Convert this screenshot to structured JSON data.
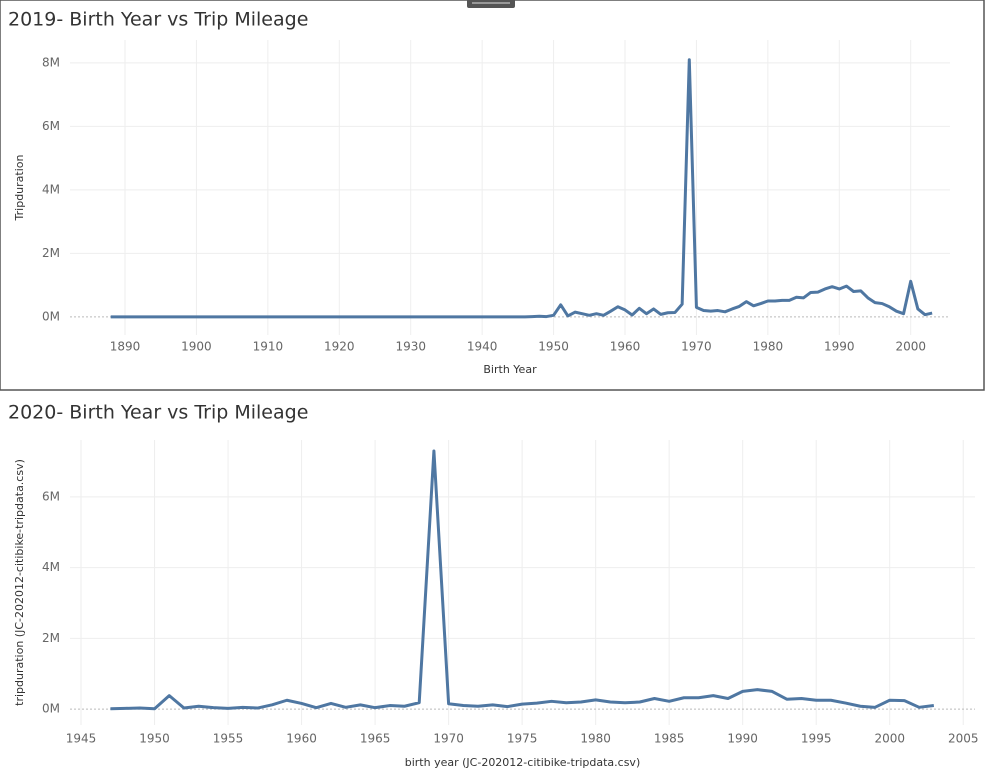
{
  "chart_data": [
    {
      "type": "line",
      "title": "2019- Birth Year vs Trip Mileage",
      "x_label": "Birth Year",
      "y_label": "Tripduration",
      "color": "#4f77a2",
      "grid": true,
      "x": [
        1888,
        1900,
        1910,
        1920,
        1930,
        1940,
        1945,
        1946,
        1947,
        1948,
        1949,
        1950,
        1951,
        1952,
        1953,
        1954,
        1955,
        1956,
        1957,
        1958,
        1959,
        1960,
        1961,
        1962,
        1963,
        1964,
        1965,
        1966,
        1967,
        1968,
        1969,
        1970,
        1971,
        1972,
        1973,
        1974,
        1975,
        1976,
        1977,
        1978,
        1979,
        1980,
        1981,
        1982,
        1983,
        1984,
        1985,
        1986,
        1987,
        1988,
        1989,
        1990,
        1991,
        1992,
        1993,
        1994,
        1995,
        1996,
        1997,
        1998,
        1999,
        2000,
        2001,
        2002,
        2003
      ],
      "values": [
        0,
        0,
        0,
        0,
        0,
        0,
        0,
        0,
        10000,
        20000,
        10000,
        50000,
        380000,
        30000,
        150000,
        100000,
        50000,
        100000,
        50000,
        180000,
        320000,
        220000,
        60000,
        270000,
        100000,
        250000,
        80000,
        130000,
        140000,
        400000,
        8100000,
        300000,
        200000,
        180000,
        200000,
        160000,
        250000,
        330000,
        480000,
        350000,
        420000,
        500000,
        500000,
        520000,
        520000,
        620000,
        600000,
        770000,
        780000,
        880000,
        950000,
        880000,
        970000,
        800000,
        820000,
        600000,
        450000,
        420000,
        320000,
        180000,
        100000,
        1120000,
        250000,
        70000,
        120000
      ],
      "xlim": [
        1882.3,
        2005.5
      ],
      "xticks": [
        1890,
        1900,
        1910,
        1920,
        1930,
        1940,
        1950,
        1960,
        1970,
        1980,
        1990,
        2000
      ],
      "ylim": [
        -570000,
        8720000
      ],
      "yticks": [
        {
          "value": 0,
          "label": "0M"
        },
        {
          "value": 2000000,
          "label": "2M"
        },
        {
          "value": 4000000,
          "label": "4M"
        },
        {
          "value": 6000000,
          "label": "6M"
        },
        {
          "value": 8000000,
          "label": "8M"
        }
      ]
    },
    {
      "type": "line",
      "title": "2020- Birth Year vs Trip Mileage",
      "x_label": "birth year (JC-202012-citibike-tripdata.csv)",
      "y_label": "tripduration (JC-202012-citibike-tripdata.csv)",
      "color": "#4f77a2",
      "grid": true,
      "x": [
        1947,
        1948,
        1949,
        1950,
        1951,
        1952,
        1953,
        1954,
        1955,
        1956,
        1957,
        1958,
        1959,
        1960,
        1961,
        1962,
        1963,
        1964,
        1965,
        1966,
        1967,
        1968,
        1969,
        1970,
        1971,
        1972,
        1973,
        1974,
        1975,
        1976,
        1977,
        1978,
        1979,
        1980,
        1981,
        1982,
        1983,
        1984,
        1985,
        1986,
        1987,
        1988,
        1989,
        1990,
        1991,
        1992,
        1993,
        1994,
        1995,
        1996,
        1997,
        1998,
        1999,
        2000,
        2001,
        2002,
        2003
      ],
      "values": [
        10000,
        20000,
        30000,
        10000,
        380000,
        30000,
        80000,
        40000,
        20000,
        50000,
        30000,
        120000,
        250000,
        160000,
        40000,
        160000,
        50000,
        120000,
        40000,
        100000,
        80000,
        180000,
        7300000,
        150000,
        100000,
        80000,
        120000,
        70000,
        140000,
        170000,
        220000,
        180000,
        200000,
        260000,
        200000,
        180000,
        200000,
        300000,
        220000,
        320000,
        320000,
        380000,
        300000,
        500000,
        550000,
        500000,
        280000,
        300000,
        250000,
        250000,
        170000,
        80000,
        50000,
        250000,
        240000,
        50000,
        100000
      ],
      "xlim": [
        1944.25,
        2005.8
      ],
      "xticks": [
        1945,
        1950,
        1955,
        1960,
        1965,
        1970,
        1975,
        1980,
        1985,
        1990,
        1995,
        2000,
        2005
      ],
      "ylim": [
        -450000,
        7610000
      ],
      "yticks": [
        {
          "value": 0,
          "label": "0M"
        },
        {
          "value": 2000000,
          "label": "2M"
        },
        {
          "value": 4000000,
          "label": "4M"
        },
        {
          "value": 6000000,
          "label": "6M"
        }
      ]
    }
  ]
}
